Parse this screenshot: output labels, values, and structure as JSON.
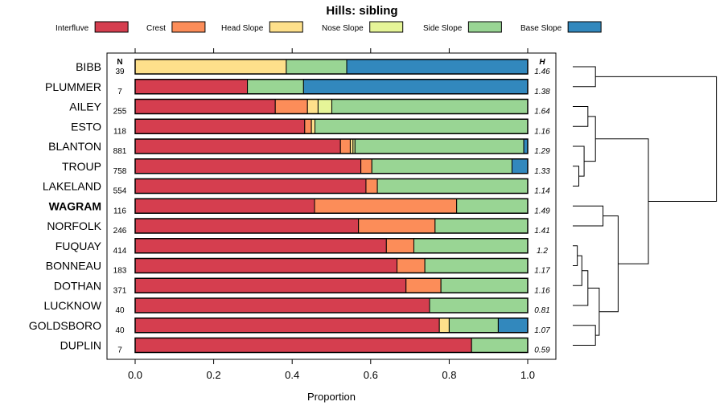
{
  "chart_data": {
    "type": "bar",
    "orientation": "horizontal-stacked",
    "title": "Hills: sibling",
    "xlabel": "Proportion",
    "ylabel": "",
    "xlim": [
      0,
      1
    ],
    "x_ticks": [
      "0.0",
      "0.2",
      "0.4",
      "0.6",
      "0.8",
      "1.0"
    ],
    "n_header": "N",
    "h_header": "H",
    "legend": [
      {
        "name": "Interfluve",
        "color": "#D53E4F"
      },
      {
        "name": "Crest",
        "color": "#FC8D59"
      },
      {
        "name": "Head Slope",
        "color": "#FEE08B"
      },
      {
        "name": "Nose Slope",
        "color": "#E6F598"
      },
      {
        "name": "Side Slope",
        "color": "#99D594"
      },
      {
        "name": "Base Slope",
        "color": "#3288BD"
      }
    ],
    "rows": [
      {
        "label": "BIBB",
        "bold": false,
        "n": "39",
        "h": "1.46",
        "values": [
          0,
          0,
          0.385,
          0,
          0.154,
          0.461
        ]
      },
      {
        "label": "PLUMMER",
        "bold": false,
        "n": "7",
        "h": "1.38",
        "values": [
          0.286,
          0,
          0,
          0,
          0.143,
          0.571
        ]
      },
      {
        "label": "AILEY",
        "bold": false,
        "n": "255",
        "h": "1.64",
        "values": [
          0.357,
          0.082,
          0.027,
          0.035,
          0.499,
          0
        ]
      },
      {
        "label": "ESTO",
        "bold": false,
        "n": "118",
        "h": "1.16",
        "values": [
          0.432,
          0.017,
          0.009,
          0,
          0.542,
          0
        ]
      },
      {
        "label": "BLANTON",
        "bold": false,
        "n": "881",
        "h": "1.29",
        "values": [
          0.523,
          0.025,
          0.007,
          0.005,
          0.43,
          0.01
        ]
      },
      {
        "label": "TROUP",
        "bold": false,
        "n": "758",
        "h": "1.33",
        "values": [
          0.575,
          0.028,
          0,
          0,
          0.357,
          0.04
        ]
      },
      {
        "label": "LAKELAND",
        "bold": false,
        "n": "554",
        "h": "1.14",
        "values": [
          0.588,
          0.029,
          0,
          0,
          0.383,
          0
        ]
      },
      {
        "label": "WAGRAM",
        "bold": true,
        "n": "116",
        "h": "1.49",
        "values": [
          0.457,
          0.362,
          0,
          0,
          0.181,
          0
        ]
      },
      {
        "label": "NORFOLK",
        "bold": false,
        "n": "246",
        "h": "1.41",
        "values": [
          0.569,
          0.195,
          0,
          0,
          0.236,
          0
        ]
      },
      {
        "label": "FUQUAY",
        "bold": false,
        "n": "414",
        "h": "1.2",
        "values": [
          0.64,
          0.07,
          0,
          0,
          0.29,
          0
        ]
      },
      {
        "label": "BONNEAU",
        "bold": false,
        "n": "183",
        "h": "1.17",
        "values": [
          0.667,
          0.071,
          0,
          0,
          0.262,
          0
        ]
      },
      {
        "label": "DOTHAN",
        "bold": false,
        "n": "371",
        "h": "1.16",
        "values": [
          0.69,
          0.089,
          0,
          0,
          0.221,
          0
        ]
      },
      {
        "label": "LUCKNOW",
        "bold": false,
        "n": "40",
        "h": "0.81",
        "values": [
          0.75,
          0,
          0,
          0,
          0.25,
          0
        ]
      },
      {
        "label": "GOLDSBORO",
        "bold": false,
        "n": "40",
        "h": "1.07",
        "values": [
          0.775,
          0,
          0.025,
          0,
          0.125,
          0.075
        ]
      },
      {
        "label": "DUPLIN",
        "bold": false,
        "n": "7",
        "h": "0.59",
        "values": [
          0.857,
          0,
          0,
          0,
          0.143,
          0
        ]
      }
    ],
    "dendrogram": [
      {
        "a": 0,
        "b": 1,
        "h": 0.3
      },
      {
        "a": 5,
        "b": 6,
        "h": 0.08
      },
      {
        "a": 4,
        "b": "c1",
        "h": 0.15
      },
      {
        "a": 2,
        "b": 3,
        "h": 0.2
      },
      {
        "a": "c3",
        "b": "c2",
        "h": 0.3
      },
      {
        "a": 7,
        "b": 8,
        "h": 0.4
      },
      {
        "a": 9,
        "b": 10,
        "h": 0.06
      },
      {
        "a": "c6",
        "b": 11,
        "h": 0.12
      },
      {
        "a": "c7",
        "b": 12,
        "h": 0.2
      },
      {
        "a": 13,
        "b": 14,
        "h": 0.3
      },
      {
        "a": "c8",
        "b": "c9",
        "h": 0.35
      },
      {
        "a": "c5",
        "b": "c10",
        "h": 0.6
      },
      {
        "a": "c4",
        "b": "c11",
        "h": 1.0
      },
      {
        "a": "c0",
        "b": "c12",
        "h": 1.9
      }
    ]
  }
}
